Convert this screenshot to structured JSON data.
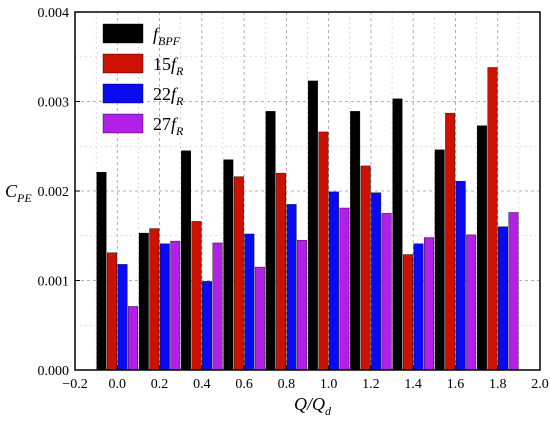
{
  "chart_data": {
    "type": "bar",
    "x": [
      0.0,
      0.2,
      0.4,
      0.6,
      0.8,
      1.0,
      1.2,
      1.4,
      1.6,
      1.8
    ],
    "xlim": [
      -0.2,
      2.0
    ],
    "ylim": [
      0,
      0.004
    ],
    "xticks": [
      "−0.2",
      "0.0",
      "0.2",
      "0.4",
      "0.6",
      "0.8",
      "1.0",
      "1.2",
      "1.4",
      "1.6",
      "1.8",
      "2.0"
    ],
    "yticks": [
      "0.000",
      "0.001",
      "0.002",
      "0.003",
      "0.004"
    ],
    "xlabel": {
      "main": "Q/Q",
      "sub": "d"
    },
    "ylabel": {
      "main": "C",
      "sub": "PE"
    },
    "grid": true,
    "legend_position": "top-left",
    "series": [
      {
        "name_main": "f",
        "name_sub": "BPF",
        "name_italic": true,
        "color": "#000000",
        "values": [
          0.00221,
          0.00153,
          0.00245,
          0.00235,
          0.00289,
          0.00323,
          0.00289,
          0.00303,
          0.00246,
          0.00273
        ]
      },
      {
        "name_main": "15f",
        "name_sub": "R",
        "color": "#cc1100",
        "values": [
          0.00131,
          0.00158,
          0.00166,
          0.00216,
          0.0022,
          0.00266,
          0.00228,
          0.00129,
          0.00287,
          0.00338
        ]
      },
      {
        "name_main": "22f",
        "name_sub": "R",
        "color": "#0a0aee",
        "values": [
          0.00118,
          0.00141,
          0.00099,
          0.00152,
          0.00185,
          0.00199,
          0.00198,
          0.00141,
          0.00211,
          0.0016
        ]
      },
      {
        "name_main": "27f",
        "name_sub": "R",
        "color": "#b21fe6",
        "values": [
          0.00071,
          0.00144,
          0.00142,
          0.00115,
          0.00145,
          0.00181,
          0.00175,
          0.00148,
          0.00151,
          0.00176
        ]
      }
    ]
  }
}
